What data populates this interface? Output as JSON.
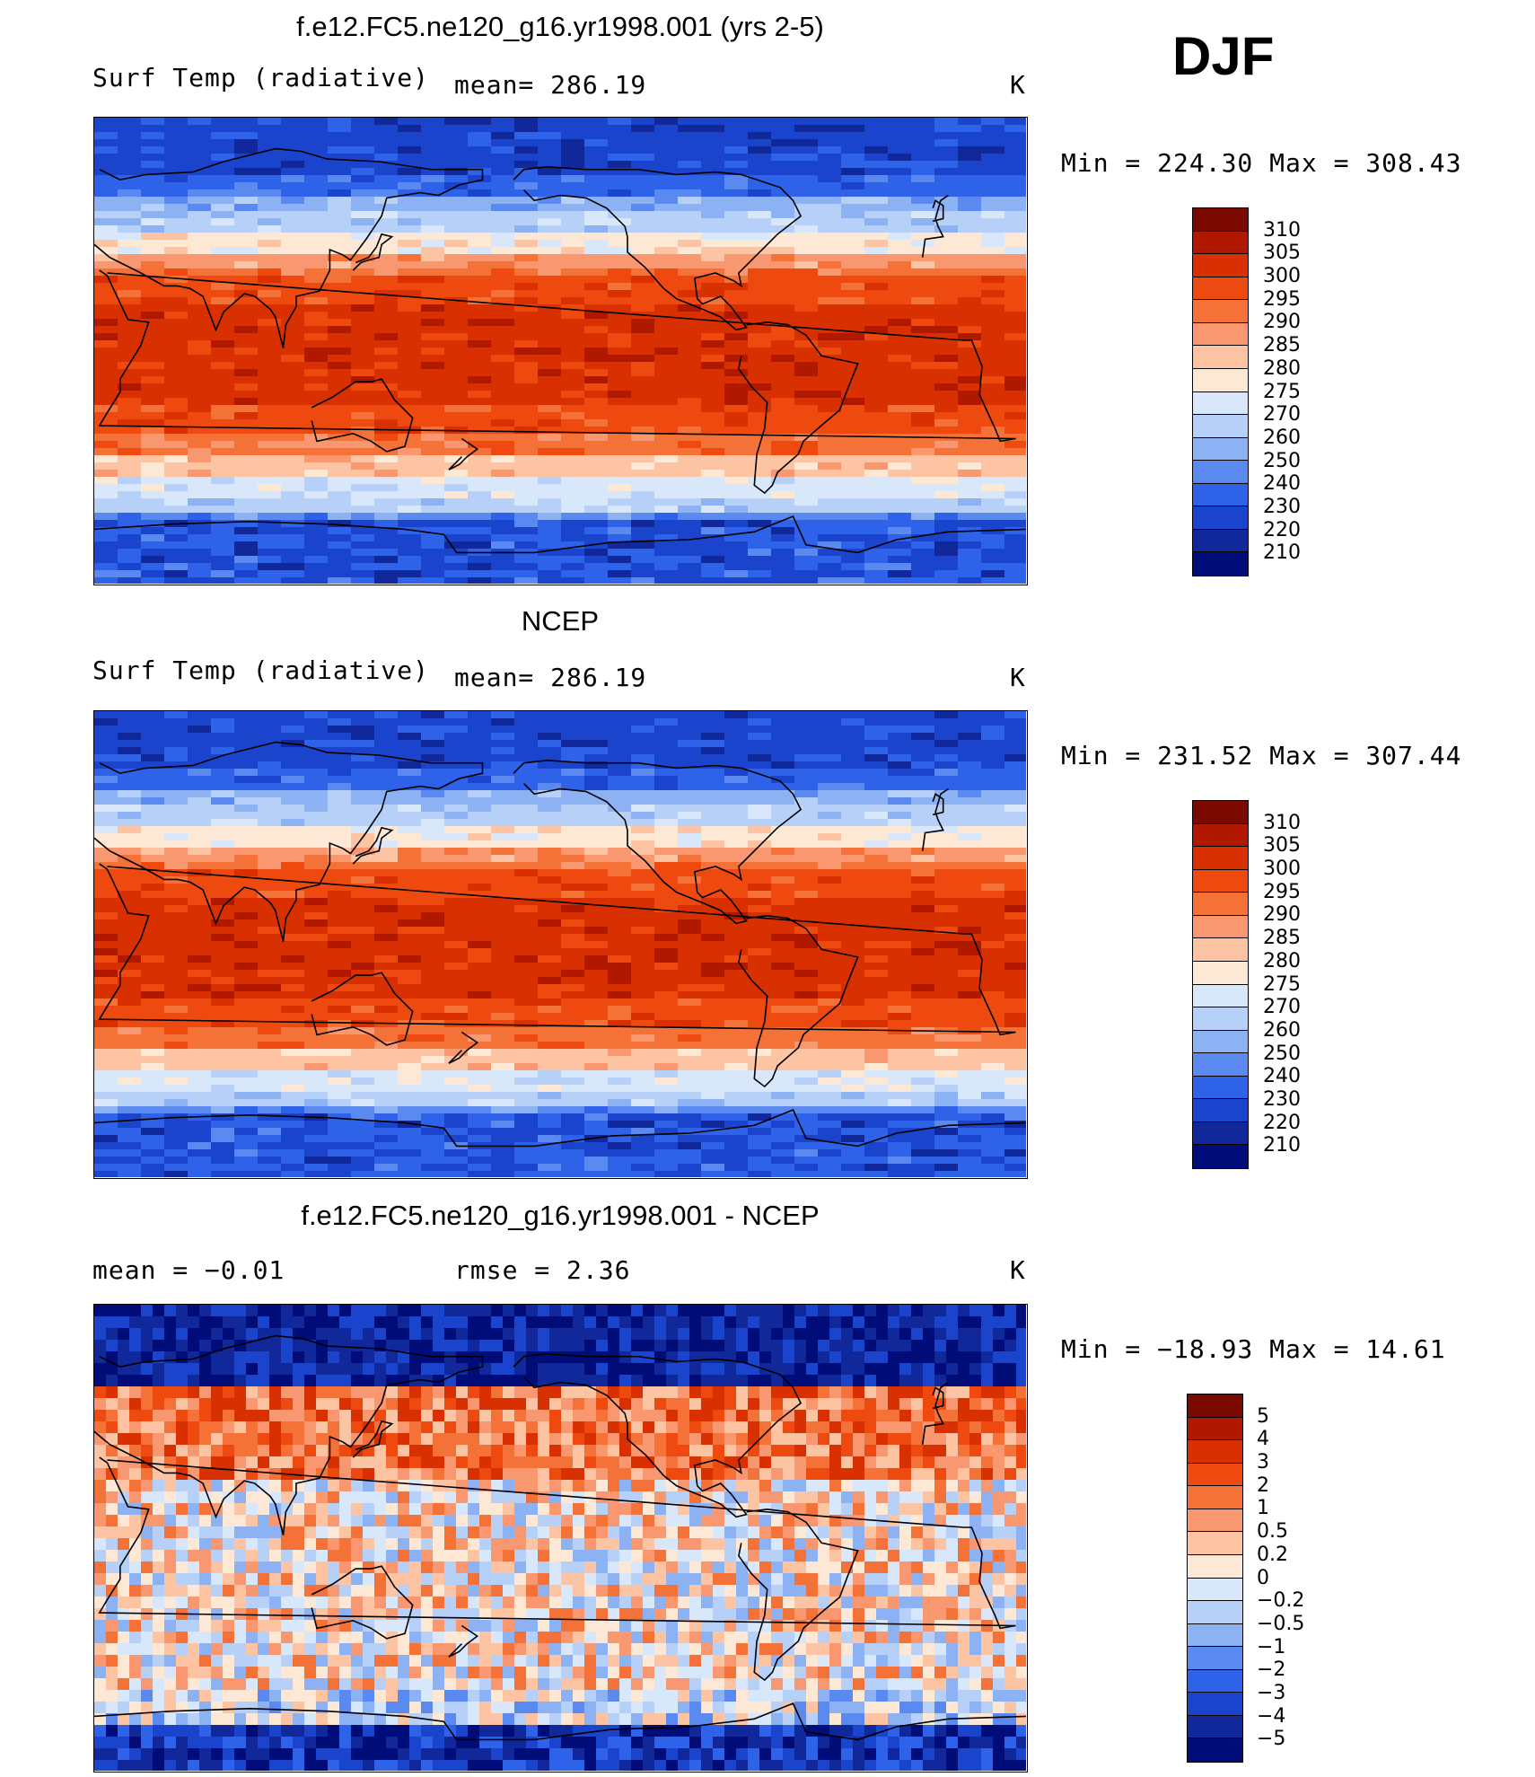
{
  "season": "DJF",
  "panels": [
    {
      "id": "model",
      "title": "f.e12.FC5.ne120_g16.yr1998.001 (yrs 2-5)",
      "left_label": "Surf Temp (radiative)",
      "center_label": "mean= 286.19",
      "units": "K",
      "minmax": "Min = 224.30 Max = 308.43"
    },
    {
      "id": "obs",
      "title": "NCEP",
      "left_label": "Surf Temp (radiative)",
      "center_label": "mean= 286.19",
      "units": "K",
      "minmax": "Min = 231.52 Max = 307.44"
    },
    {
      "id": "diff",
      "title": "f.e12.FC5.ne120_g16.yr1998.001 - NCEP",
      "left_label": "mean = −0.01",
      "center_label": "rmse = 2.36",
      "units": "K",
      "minmax": "Min = −18.93 Max = 14.61"
    }
  ],
  "colorbars": {
    "temperature": {
      "labels": [
        "310",
        "305",
        "300",
        "295",
        "290",
        "285",
        "280",
        "275",
        "270",
        "260",
        "250",
        "240",
        "230",
        "220",
        "210"
      ],
      "colors": [
        "#7a0a00",
        "#b01800",
        "#d83000",
        "#ee4a10",
        "#f47238",
        "#f99870",
        "#fcc4a2",
        "#fde8d6",
        "#d8e8fa",
        "#b6d0f8",
        "#8cb2f4",
        "#5a8af0",
        "#2e62e8",
        "#1b44cc",
        "#10289a",
        "#000c78"
      ]
    },
    "difference": {
      "labels": [
        "5",
        "4",
        "3",
        "2",
        "1",
        "0.5",
        "0.2",
        "0",
        "−0.2",
        "−0.5",
        "−1",
        "−2",
        "−3",
        "−4",
        "−5"
      ],
      "colors": [
        "#7a0a00",
        "#b01800",
        "#d83000",
        "#ee4a10",
        "#f47238",
        "#f99870",
        "#fcc4a2",
        "#fde8d6",
        "#d8e8fa",
        "#b6d0f8",
        "#8cb2f4",
        "#5a8af0",
        "#2e62e8",
        "#1b44cc",
        "#10289a",
        "#000c78"
      ]
    }
  }
}
